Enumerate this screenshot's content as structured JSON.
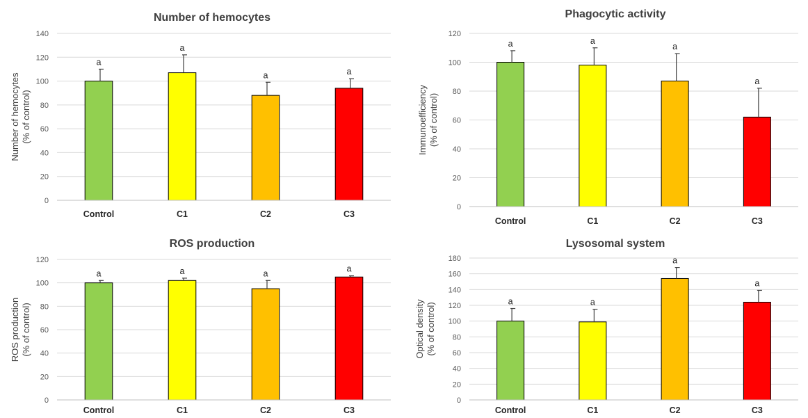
{
  "chart_data": [
    {
      "type": "bar",
      "title": "Number of hemocytes",
      "ylabel_lines": [
        "Number of hemocytes",
        "(% of control)"
      ],
      "categories": [
        "Control",
        "C1",
        "C2",
        "C3"
      ],
      "values": [
        100,
        107,
        88,
        94
      ],
      "errors": [
        10,
        15,
        11,
        8
      ],
      "annotations": [
        "a",
        "a",
        "a",
        "a"
      ],
      "colors": [
        "#92d050",
        "#ffff00",
        "#ffc000",
        "#ff0000"
      ],
      "ylim": [
        0,
        140
      ],
      "yticks": [
        0,
        20,
        40,
        60,
        80,
        100,
        120,
        140
      ],
      "grid": true
    },
    {
      "type": "bar",
      "title": "Phagocytic activity",
      "ylabel_lines": [
        "Immunoefficiency",
        "(% of control)"
      ],
      "categories": [
        "Control",
        "C1",
        "C2",
        "C3"
      ],
      "values": [
        100,
        98,
        87,
        62
      ],
      "errors": [
        8,
        12,
        19,
        20
      ],
      "annotations": [
        "a",
        "a",
        "a",
        "a"
      ],
      "colors": [
        "#92d050",
        "#ffff00",
        "#ffc000",
        "#ff0000"
      ],
      "ylim": [
        0,
        120
      ],
      "yticks": [
        0,
        20,
        40,
        60,
        80,
        100,
        120
      ],
      "grid": true
    },
    {
      "type": "bar",
      "title": "ROS production",
      "ylabel_lines": [
        "ROS production",
        "(% of control)"
      ],
      "categories": [
        "Control",
        "C1",
        "C2",
        "C3"
      ],
      "values": [
        100,
        102,
        95,
        105
      ],
      "errors": [
        2,
        2,
        7,
        1
      ],
      "annotations": [
        "a",
        "a",
        "a",
        "a"
      ],
      "colors": [
        "#92d050",
        "#ffff00",
        "#ffc000",
        "#ff0000"
      ],
      "ylim": [
        0,
        120
      ],
      "yticks": [
        0,
        20,
        40,
        60,
        80,
        100,
        120
      ],
      "grid": true
    },
    {
      "type": "bar",
      "title": "Lysosomal system",
      "ylabel_lines": [
        "Optical density",
        "(% of control)"
      ],
      "categories": [
        "Control",
        "C1",
        "C2",
        "C3"
      ],
      "values": [
        100,
        99,
        154,
        124
      ],
      "errors": [
        16,
        16,
        14,
        15
      ],
      "annotations": [
        "a",
        "a",
        "a",
        "a"
      ],
      "colors": [
        "#92d050",
        "#ffff00",
        "#ffc000",
        "#ff0000"
      ],
      "ylim": [
        0,
        180
      ],
      "yticks": [
        0,
        20,
        40,
        60,
        80,
        100,
        120,
        140,
        160,
        180
      ],
      "grid": true
    }
  ]
}
